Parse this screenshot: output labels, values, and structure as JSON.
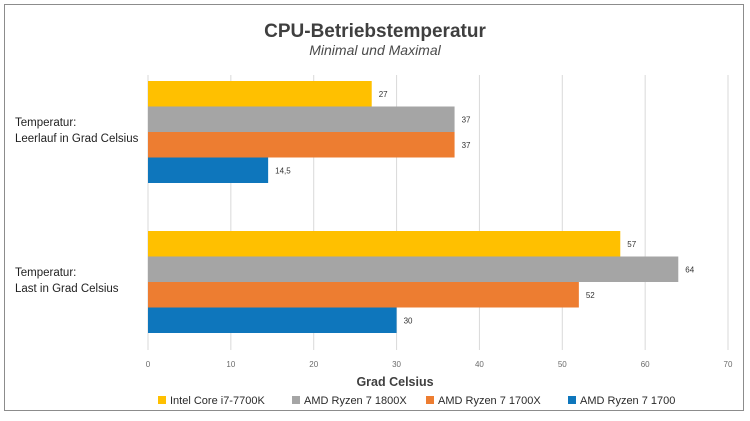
{
  "chart_data": {
    "type": "bar",
    "orientation": "horizontal",
    "title": "CPU-Betriebstemperatur",
    "subtitle": "Minimal und Maximal",
    "xlabel": "Grad Celsius",
    "ylabel": "",
    "xlim": [
      0,
      70
    ],
    "xticks": [
      0,
      10,
      20,
      30,
      40,
      50,
      60,
      70
    ],
    "grid": true,
    "legend_position": "bottom",
    "categories": [
      [
        "Temperatur:",
        "Leerlauf in Grad Celsius"
      ],
      [
        "Temperatur:",
        "Last in Grad Celsius"
      ]
    ],
    "series": [
      {
        "name": "Intel Core i7-7700K",
        "color": "#FFC000",
        "values": [
          27,
          57
        ],
        "labels": [
          "27",
          "57"
        ]
      },
      {
        "name": "AMD Ryzen 7 1800X",
        "color": "#A5A5A5",
        "values": [
          37,
          64
        ],
        "labels": [
          "37",
          "64"
        ]
      },
      {
        "name": "AMD Ryzen 7 1700X",
        "color": "#ED7D31",
        "values": [
          37,
          52
        ],
        "labels": [
          "37",
          "52"
        ]
      },
      {
        "name": "AMD Ryzen 7 1700",
        "color": "#0E76BC",
        "values": [
          14.5,
          30
        ],
        "labels": [
          "14,5",
          "30"
        ]
      }
    ]
  }
}
